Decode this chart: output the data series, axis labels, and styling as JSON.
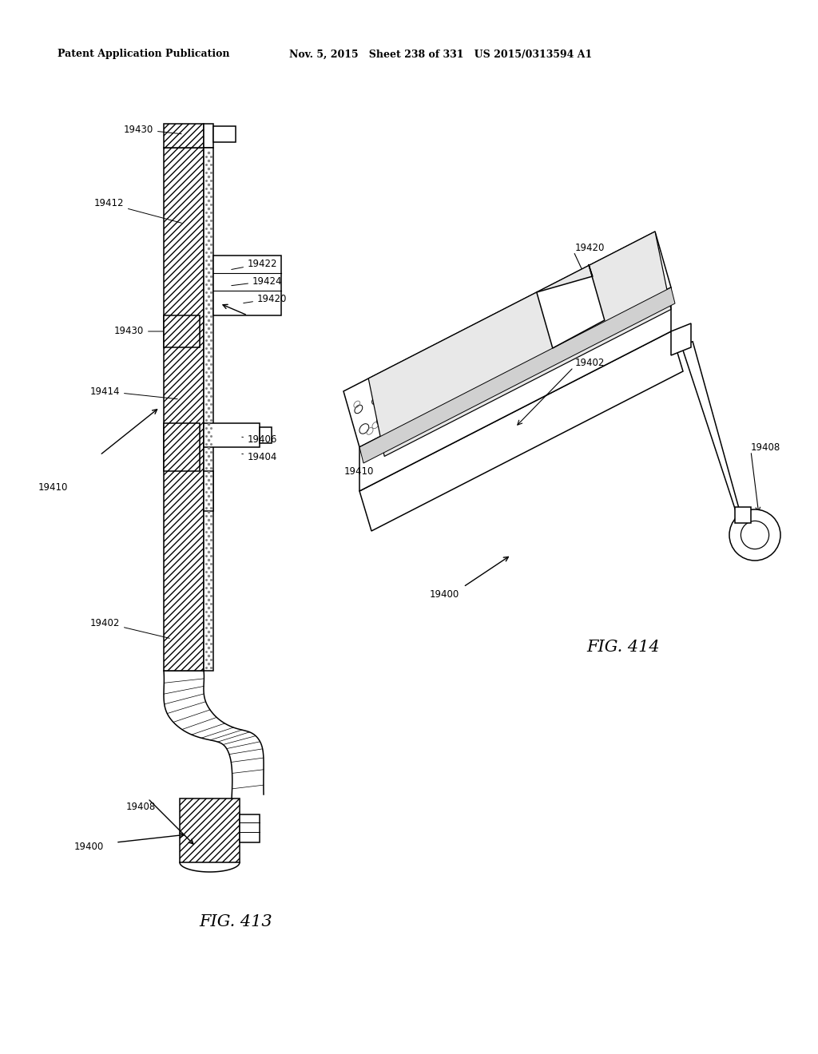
{
  "header_left": "Patent Application Publication",
  "header_middle": "Nov. 5, 2015   Sheet 238 of 331   US 2015/0313594 A1",
  "fig413_label": "FIG. 413",
  "fig414_label": "FIG. 414",
  "background_color": "#ffffff",
  "line_color": "#000000",
  "label_fontsize": 8.5,
  "header_fontsize": 9,
  "fig_label_fontsize": 15
}
